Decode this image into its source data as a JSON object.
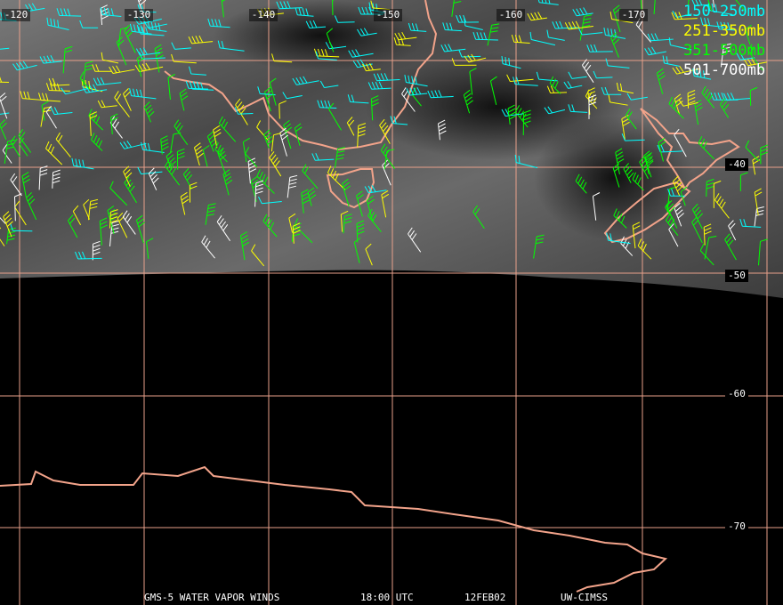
{
  "map": {
    "longitude_labels": [
      "-120",
      "-130",
      "-140",
      "-150",
      "-160",
      "-170"
    ],
    "latitude_labels": [
      "-40",
      "-50",
      "-60",
      "-70"
    ],
    "legend": [
      {
        "label": "150-250mb",
        "color": "#00ffff"
      },
      {
        "label": "251-350mb",
        "color": "#ffff00"
      },
      {
        "label": "351-500mb",
        "color": "#00ff00"
      },
      {
        "label": "501-700mb",
        "color": "#ffffff"
      }
    ],
    "footer": [
      "GMS-5 WATER VAPOR WINDS",
      "18:00 UTC",
      "12FEB02",
      "UW-CIMSS"
    ]
  }
}
